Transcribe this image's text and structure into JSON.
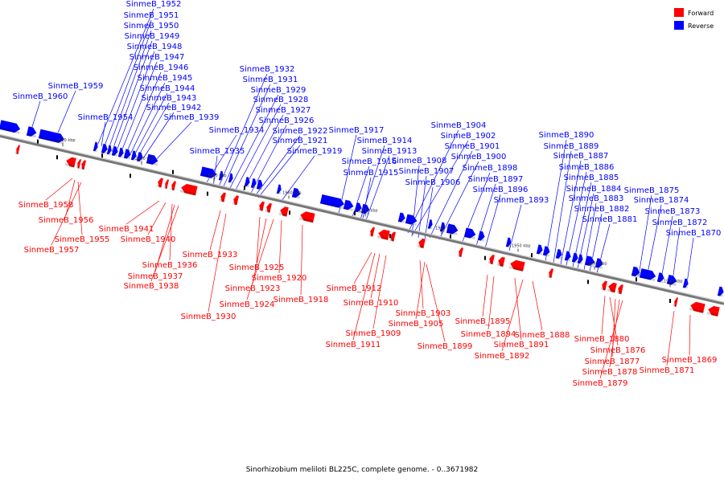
{
  "caption": "Sinorhizobium meliloti BL225C, complete genome. - 0..3671982",
  "legend": [
    {
      "label": "Forward",
      "color": "#ff0000"
    },
    {
      "label": "Reverse",
      "color": "#0000ff"
    }
  ],
  "colors": {
    "forward": "#ff0000",
    "reverse": "#0000ff",
    "backbone": "#777777"
  },
  "ticks": [
    "2010 kbp",
    "2000 kbp",
    "1990 kbp",
    "1980 kbp",
    "1970 kbp",
    "1960 kbp",
    "1950 kbp",
    "1940 kbp",
    "1930 kbp"
  ],
  "reverse_labels": [
    "SinmeB_1952",
    "SinmeB_1951",
    "SinmeB_1950",
    "SinmeB_1949",
    "SinmeB_1948",
    "SinmeB_1947",
    "SinmeB_1946",
    "SinmeB_1945",
    "SinmeB_1944",
    "SinmeB_1943",
    "SinmeB_1942",
    "SinmeB_1939",
    "SinmeB_1954",
    "SinmeB_1959",
    "SinmeB_1960",
    "SinmeB_1932",
    "SinmeB_1931",
    "SinmeB_1929",
    "SinmeB_1928",
    "SinmeB_1927",
    "SinmeB_1926",
    "SinmeB_1922",
    "SinmeB_1921",
    "SinmeB_1919",
    "SinmeB_1934",
    "SinmeB_1935",
    "SinmeB_1917",
    "SinmeB_1914",
    "SinmeB_1913",
    "SinmeB_1916",
    "SinmeB_1915",
    "SinmeB_1904",
    "SinmeB_1902",
    "SinmeB_1901",
    "SinmeB_1900",
    "SinmeB_1908",
    "SinmeB_1907",
    "SinmeB_1906",
    "SinmeB_1898",
    "SinmeB_1897",
    "SinmeB_1896",
    "SinmeB_1893",
    "SinmeB_1890",
    "SinmeB_1889",
    "SinmeB_1887",
    "SinmeB_1886",
    "SinmeB_1885",
    "SinmeB_1884",
    "SinmeB_1883",
    "SinmeB_1882",
    "SinmeB_1881",
    "SinmeB_1875",
    "SinmeB_1874",
    "SinmeB_1873",
    "SinmeB_1872",
    "SinmeB_1870"
  ],
  "forward_labels": [
    "SinmeB_1958",
    "SinmeB_1956",
    "SinmeB_1955",
    "SinmeB_1957",
    "SinmeB_1941",
    "SinmeB_1940",
    "SinmeB_1936",
    "SinmeB_1937",
    "SinmeB_1938",
    "SinmeB_1933",
    "SinmeB_1925",
    "SinmeB_1923",
    "SinmeB_1920",
    "SinmeB_1924",
    "SinmeB_1918",
    "SinmeB_1930",
    "SinmeB_1912",
    "SinmeB_1910",
    "SinmeB_1909",
    "SinmeB_1911",
    "SinmeB_1903",
    "SinmeB_1905",
    "SinmeB_1899",
    "SinmeB_1895",
    "SinmeB_1894",
    "SinmeB_1891",
    "SinmeB_1892",
    "SinmeB_1888",
    "SinmeB_1880",
    "SinmeB_1876",
    "SinmeB_1877",
    "SinmeB_1878",
    "SinmeB_1879",
    "SinmeB_1869",
    "SinmeB_1871"
  ]
}
